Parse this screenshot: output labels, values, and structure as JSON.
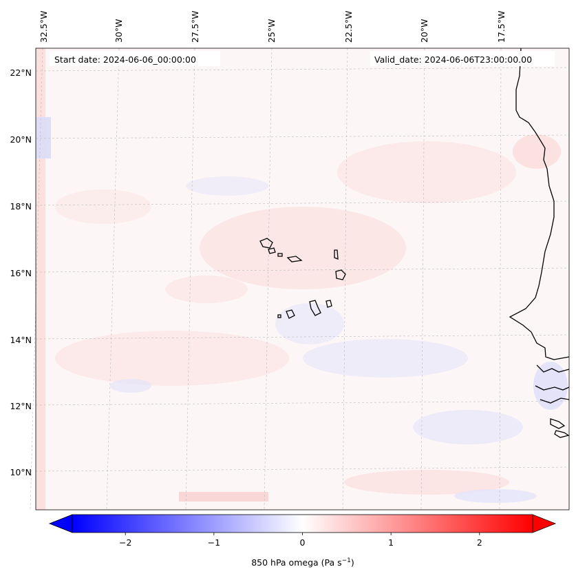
{
  "map": {
    "header_left": "Start date: 2024-06-06_00:00:00",
    "header_right": "Valid_date: 2024-06-06T23:00:00.00",
    "lon_labels": [
      "32.5°W",
      "30°W",
      "27.5°W",
      "25°W",
      "22.5°W",
      "20°W",
      "17.5°W"
    ],
    "lat_labels": [
      "22°N",
      "20°N",
      "18°N",
      "16°N",
      "14°N",
      "12°N",
      "10°N"
    ],
    "field": "850 hPa omega",
    "coastline_color": "#000000",
    "gridline_color": "#bbbbbb"
  },
  "colorbar": {
    "label": "850 hPa omega (Pa s",
    "label_sup": "−1",
    "label_close": ")",
    "ticks": [
      -2,
      -1,
      0,
      1,
      2
    ],
    "tick_labels": [
      "−2",
      "−1",
      "0",
      "1",
      "2"
    ],
    "range": [
      -2.6,
      2.6
    ],
    "colormap": "bwr",
    "extend": "both",
    "color_low": "#0000ff",
    "color_mid": "#ffffff",
    "color_high": "#ff0000"
  }
}
